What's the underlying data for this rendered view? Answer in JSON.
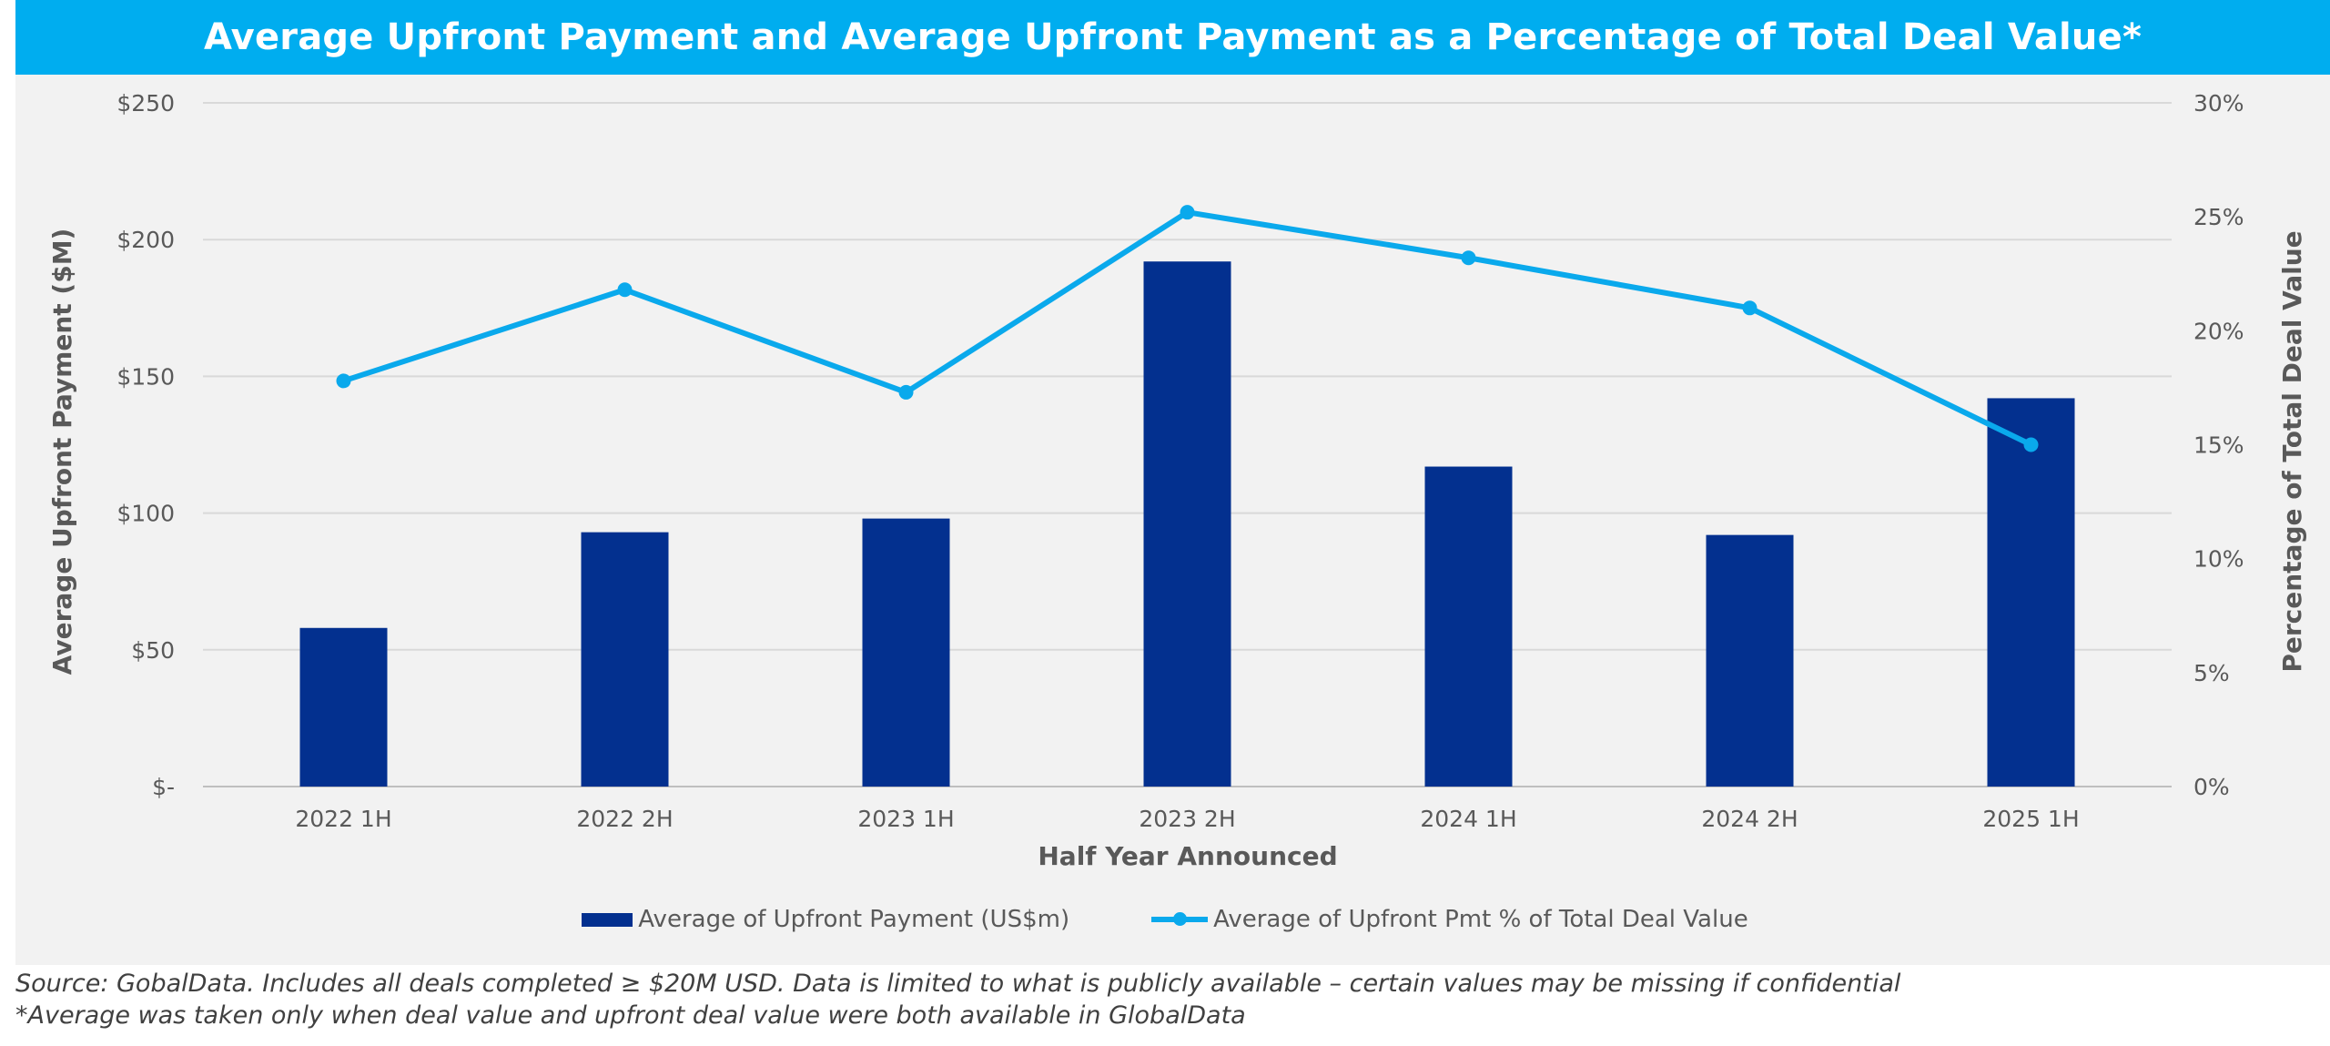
{
  "title": "Average Upfront Payment and Average Upfront Payment as a Percentage of Total Deal Value*",
  "chart_data": {
    "type": "bar",
    "categories": [
      "2022 1H",
      "2022 2H",
      "2023 1H",
      "2023 2H",
      "2024 1H",
      "2024 2H",
      "2025 1H"
    ],
    "series": [
      {
        "name": "Average of Upfront Payment (US$m)",
        "type": "bar",
        "axis": "left",
        "color": "#03308f",
        "values": [
          58,
          93,
          98,
          192,
          117,
          92,
          142
        ]
      },
      {
        "name": "Average of Upfront Pmt % of Total Deal Value",
        "type": "line",
        "axis": "right",
        "color": "#0aa9ec",
        "values": [
          17.8,
          21.8,
          17.3,
          25.2,
          23.2,
          21.0,
          15.0
        ]
      }
    ],
    "xlabel": "Half Year Announced",
    "ylabel": "Average Upfront Payment ($M)",
    "y2label": "Percentage of Total Deal Value",
    "ylim": [
      0,
      250
    ],
    "y2lim": [
      0,
      30
    ],
    "yticks": [
      "$-",
      "$50",
      "$100",
      "$150",
      "$200",
      "$250"
    ],
    "y2ticks": [
      "0%",
      "5%",
      "10%",
      "15%",
      "20%",
      "25%",
      "30%"
    ],
    "grid": true,
    "legend_position": "bottom"
  },
  "notes": [
    "Source: GobalData. Includes all deals completed ≥ $20M USD. Data is limited to what is publicly available – certain values may be missing if confidential",
    "*Average was taken only when deal value and upfront deal value were both available in GlobalData"
  ]
}
